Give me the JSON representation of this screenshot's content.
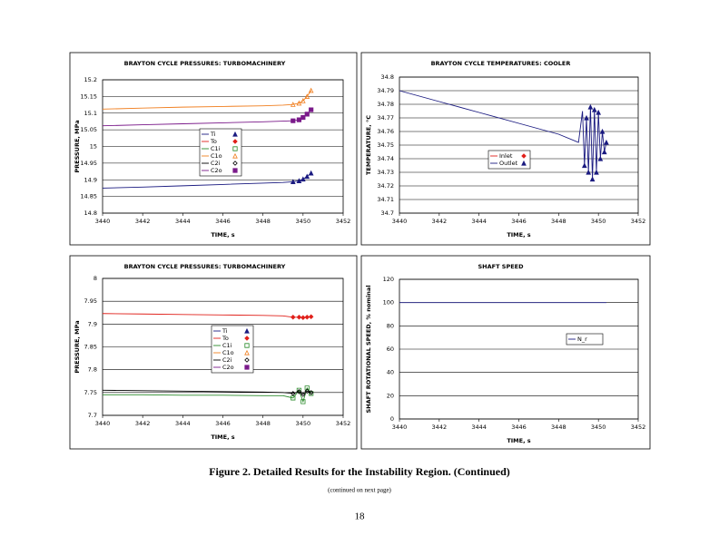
{
  "chart_data": [
    {
      "type": "line",
      "title": "BRAYTON CYCLE PRESSURES: TURBOMACHINERY",
      "x_label": "TIME, s",
      "y_label": "PRESSURE, MPa",
      "xlim": [
        3440,
        3452
      ],
      "xticks": [
        3440,
        3442,
        3444,
        3446,
        3448,
        3450,
        3452
      ],
      "ylim": [
        14.8,
        15.2
      ],
      "yticks": [
        14.8,
        14.85,
        14.9,
        14.95,
        15,
        15.05,
        15.1,
        15.15,
        15.2
      ],
      "grid": true,
      "x": [
        3440,
        3442,
        3444,
        3446,
        3448,
        3449,
        3449.5,
        3449.8,
        3450,
        3450.2,
        3450.4
      ],
      "series": [
        {
          "name": "Ti",
          "color": "#1a1a80",
          "marker": "triangle",
          "filled": true,
          "values": [
            14.875,
            14.878,
            14.882,
            14.886,
            14.89,
            14.892,
            14.894,
            14.897,
            14.902,
            14.91,
            14.92
          ]
        },
        {
          "name": "To",
          "color": "#e0201a",
          "marker": "diamond",
          "filled": true,
          "values": [
            null,
            null,
            null,
            null,
            null,
            null,
            null,
            null,
            null,
            null,
            null
          ]
        },
        {
          "name": "C1i",
          "color": "#2a8a2a",
          "marker": "square",
          "filled": false,
          "values": [
            null,
            null,
            null,
            null,
            null,
            null,
            null,
            null,
            null,
            null,
            null
          ]
        },
        {
          "name": "C1o",
          "color": "#f07f20",
          "marker": "triangle",
          "filled": false,
          "values": [
            15.112,
            15.115,
            15.118,
            15.12,
            15.122,
            15.124,
            15.126,
            15.13,
            15.137,
            15.15,
            15.168
          ]
        },
        {
          "name": "C2i",
          "color": "#000000",
          "marker": "diamond",
          "filled": false,
          "values": [
            null,
            null,
            null,
            null,
            null,
            null,
            null,
            null,
            null,
            null,
            null
          ]
        },
        {
          "name": "C2o",
          "color": "#7a1a8a",
          "marker": "square",
          "filled": true,
          "values": [
            15.062,
            15.065,
            15.068,
            15.071,
            15.074,
            15.076,
            15.077,
            15.08,
            15.087,
            15.097,
            15.11
          ]
        }
      ]
    },
    {
      "type": "line",
      "title": "BRAYTON CYCLE TEMPERATURES: COOLER",
      "x_label": "TIME, s",
      "y_label": "TEMPERATURE, °C",
      "xlim": [
        3440,
        3452
      ],
      "xticks": [
        3440,
        3442,
        3444,
        3446,
        3448,
        3450,
        3452
      ],
      "ylim": [
        34.7,
        34.8
      ],
      "yticks": [
        34.7,
        34.71,
        34.72,
        34.73,
        34.74,
        34.75,
        34.76,
        34.77,
        34.78,
        34.79,
        34.8
      ],
      "grid": true,
      "x": [
        3440,
        3442,
        3444,
        3446,
        3448,
        3449,
        3449.2,
        3449.3,
        3449.4,
        3449.5,
        3449.6,
        3449.7,
        3449.8,
        3449.9,
        3450,
        3450.1,
        3450.2,
        3450.3,
        3450.4
      ],
      "series": [
        {
          "name": "Inlet",
          "color": "#e0201a",
          "marker": "diamond",
          "filled": true,
          "values": [
            null,
            null,
            null,
            null,
            null,
            null,
            null,
            null,
            null,
            null,
            null,
            null,
            null,
            null,
            null,
            null,
            null,
            null,
            null
          ]
        },
        {
          "name": "Outlet",
          "color": "#1a1a80",
          "marker": "triangle",
          "filled": true,
          "values": [
            34.79,
            34.782,
            34.774,
            34.766,
            34.758,
            34.752,
            34.775,
            34.735,
            34.77,
            34.73,
            34.778,
            34.725,
            34.776,
            34.73,
            34.774,
            34.74,
            34.76,
            34.745,
            34.752
          ]
        }
      ]
    },
    {
      "type": "line",
      "title": "BRAYTON CYCLE PRESSURES: TURBOMACHINERY",
      "x_label": "TIME, s",
      "y_label": "PRESSURE, MPa",
      "xlim": [
        3440,
        3452
      ],
      "xticks": [
        3440,
        3442,
        3444,
        3446,
        3448,
        3450,
        3452
      ],
      "ylim": [
        7.7,
        8
      ],
      "yticks": [
        7.7,
        7.75,
        7.8,
        7.85,
        7.9,
        7.95,
        8
      ],
      "grid": true,
      "x": [
        3440,
        3442,
        3444,
        3446,
        3448,
        3449,
        3449.5,
        3449.8,
        3450,
        3450.2,
        3450.4
      ],
      "series": [
        {
          "name": "Ti",
          "color": "#1a1a80",
          "marker": "triangle",
          "filled": true,
          "values": [
            null,
            null,
            null,
            null,
            null,
            null,
            null,
            null,
            null,
            null,
            null
          ]
        },
        {
          "name": "To",
          "color": "#e0201a",
          "marker": "diamond",
          "filled": true,
          "values": [
            7.923,
            7.922,
            7.921,
            7.92,
            7.919,
            7.918,
            7.915,
            7.915,
            7.914,
            7.915,
            7.916
          ]
        },
        {
          "name": "C1i",
          "color": "#2a8a2a",
          "marker": "square",
          "filled": false,
          "values": [
            7.745,
            7.745,
            7.744,
            7.744,
            7.743,
            7.743,
            7.738,
            7.755,
            7.73,
            7.76,
            7.748
          ]
        },
        {
          "name": "C1o",
          "color": "#f07f20",
          "marker": "triangle",
          "filled": false,
          "values": [
            null,
            null,
            null,
            null,
            null,
            null,
            null,
            null,
            null,
            null,
            null
          ]
        },
        {
          "name": "C2i",
          "color": "#000000",
          "marker": "diamond",
          "filled": false,
          "values": [
            7.755,
            7.754,
            7.753,
            7.752,
            7.751,
            7.75,
            7.748,
            7.752,
            7.746,
            7.753,
            7.75
          ]
        },
        {
          "name": "C2o",
          "color": "#7a1a8a",
          "marker": "square",
          "filled": true,
          "values": [
            null,
            null,
            null,
            null,
            null,
            null,
            null,
            null,
            null,
            null,
            null
          ]
        }
      ]
    },
    {
      "type": "line",
      "title": "SHAFT SPEED",
      "x_label": "TIME, s",
      "y_label": "SHAFT ROTATIONAL SPEED, % nominal",
      "xlim": [
        3440,
        3452
      ],
      "xticks": [
        3440,
        3442,
        3444,
        3446,
        3448,
        3450,
        3452
      ],
      "ylim": [
        0,
        120
      ],
      "yticks": [
        0,
        20,
        40,
        60,
        80,
        100,
        120
      ],
      "grid": true,
      "x": [
        3440,
        3445,
        3450,
        3450.4
      ],
      "series": [
        {
          "name": "N_r",
          "color": "#1a1a80",
          "values": [
            100,
            100,
            100,
            100
          ]
        }
      ]
    }
  ],
  "caption": "Figure 2. Detailed Results for the Instability Region. (Continued)",
  "note": "(continued on next page)",
  "page_number": "18"
}
